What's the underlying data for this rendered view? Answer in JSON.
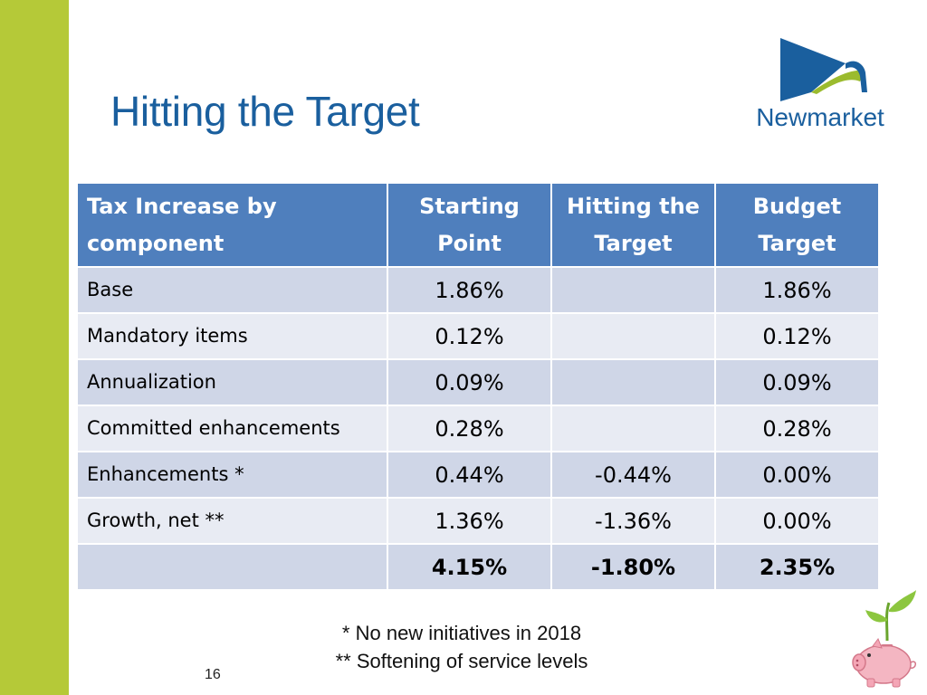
{
  "slide": {
    "title": "Hitting the Target",
    "page_number": "16"
  },
  "logo": {
    "text": "Newmarket"
  },
  "table": {
    "headers": [
      "Tax Increase by component",
      "Starting Point",
      "Hitting the Target",
      "Budget Target"
    ],
    "rows": [
      {
        "label": "Base",
        "starting": "1.86%",
        "hitting": "",
        "budget": "1.86%"
      },
      {
        "label": "Mandatory items",
        "starting": "0.12%",
        "hitting": "",
        "budget": "0.12%"
      },
      {
        "label": "Annualization",
        "starting": "0.09%",
        "hitting": "",
        "budget": "0.09%"
      },
      {
        "label": "Committed enhancements",
        "starting": "0.28%",
        "hitting": "",
        "budget": "0.28%"
      },
      {
        "label": "Enhancements *",
        "starting": "0.44%",
        "hitting": "-0.44%",
        "budget": "0.00%"
      },
      {
        "label": "Growth, net **",
        "starting": "1.36%",
        "hitting": "-1.36%",
        "budget": "0.00%"
      },
      {
        "label": "",
        "starting": "4.15%",
        "hitting": "-1.80%",
        "budget": "2.35%"
      }
    ]
  },
  "footnotes": [
    "*  No new initiatives in 2018",
    "** Softening of service levels"
  ],
  "colors": {
    "accent_bar": "#b5c938",
    "title": "#1a5f9e",
    "header_bg": "#4f7fbd",
    "row_odd": "#cfd6e7",
    "row_even": "#e8ebf3"
  },
  "icons": [
    "newmarket-logo-icon",
    "piggy-bank-sprout-icon"
  ]
}
